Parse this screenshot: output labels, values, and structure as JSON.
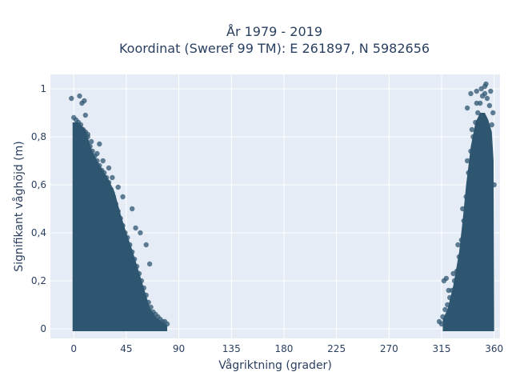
{
  "chart_data": {
    "type": "scatter",
    "title_lines": [
      "År 1979 - 2019",
      "Koordinat (Sweref 99 TM): E 261897, N 5982656"
    ],
    "xlabel": "Vågriktning (grader)",
    "ylabel": "Signifikant våghöjd (m)",
    "xlim": [
      -20,
      365
    ],
    "ylim": [
      -0.04,
      1.06
    ],
    "x_ticks": [
      0,
      45,
      90,
      135,
      180,
      225,
      270,
      315,
      360
    ],
    "x_tick_labels": [
      "0",
      "45",
      "90",
      "135",
      "180",
      "225",
      "270",
      "315",
      "360"
    ],
    "y_ticks": [
      0,
      0.2,
      0.4,
      0.6,
      0.8,
      1
    ],
    "y_tick_labels": [
      "0",
      "0,2",
      "0,4",
      "0,6",
      "0,8",
      "1"
    ],
    "grid": true,
    "legend": "none",
    "marker_color": "#2e5670",
    "background_color": "#e5ecf6",
    "series": [
      {
        "x": [
          0,
          2,
          4,
          6,
          8,
          10,
          12,
          14,
          16,
          18,
          20,
          22,
          24,
          26,
          28,
          30,
          32,
          34,
          36,
          38,
          40,
          42,
          44,
          46,
          48,
          50,
          52,
          54,
          56,
          58,
          60,
          62,
          64,
          66,
          68,
          70,
          72,
          74,
          76,
          78,
          80,
          -2,
          5,
          7,
          9,
          10,
          3,
          12,
          15,
          20,
          22,
          25,
          30,
          33,
          38,
          42,
          50,
          53,
          57,
          62,
          65,
          316,
          318,
          320,
          322,
          324,
          326,
          328,
          330,
          332,
          334,
          336,
          338,
          340,
          342,
          344,
          346,
          348,
          350,
          352,
          354,
          356,
          358,
          360,
          313,
          315,
          317,
          319,
          321,
          325,
          329,
          333,
          337,
          341,
          345,
          349,
          353,
          357,
          359,
          337,
          340,
          345,
          352
        ],
        "y": [
          0.88,
          0.87,
          0.86,
          0.85,
          0.83,
          0.82,
          0.8,
          0.76,
          0.74,
          0.72,
          0.7,
          0.68,
          0.66,
          0.65,
          0.63,
          0.61,
          0.58,
          0.55,
          0.52,
          0.49,
          0.46,
          0.43,
          0.4,
          0.38,
          0.35,
          0.32,
          0.29,
          0.26,
          0.23,
          0.2,
          0.17,
          0.14,
          0.11,
          0.09,
          0.07,
          0.06,
          0.05,
          0.04,
          0.03,
          0.03,
          0.02,
          0.96,
          0.97,
          0.94,
          0.95,
          0.89,
          0.66,
          0.81,
          0.78,
          0.73,
          0.77,
          0.7,
          0.67,
          0.63,
          0.59,
          0.55,
          0.5,
          0.42,
          0.4,
          0.35,
          0.27,
          0.05,
          0.08,
          0.1,
          0.13,
          0.16,
          0.2,
          0.24,
          0.3,
          0.37,
          0.45,
          0.55,
          0.65,
          0.74,
          0.8,
          0.86,
          0.9,
          0.94,
          0.97,
          0.98,
          0.96,
          0.93,
          0.85,
          0.6,
          0.03,
          0.02,
          0.2,
          0.21,
          0.16,
          0.23,
          0.35,
          0.5,
          0.7,
          0.83,
          0.94,
          1.0,
          1.02,
          0.99,
          0.9,
          0.92,
          0.98,
          0.99,
          1.01
        ]
      }
    ]
  }
}
